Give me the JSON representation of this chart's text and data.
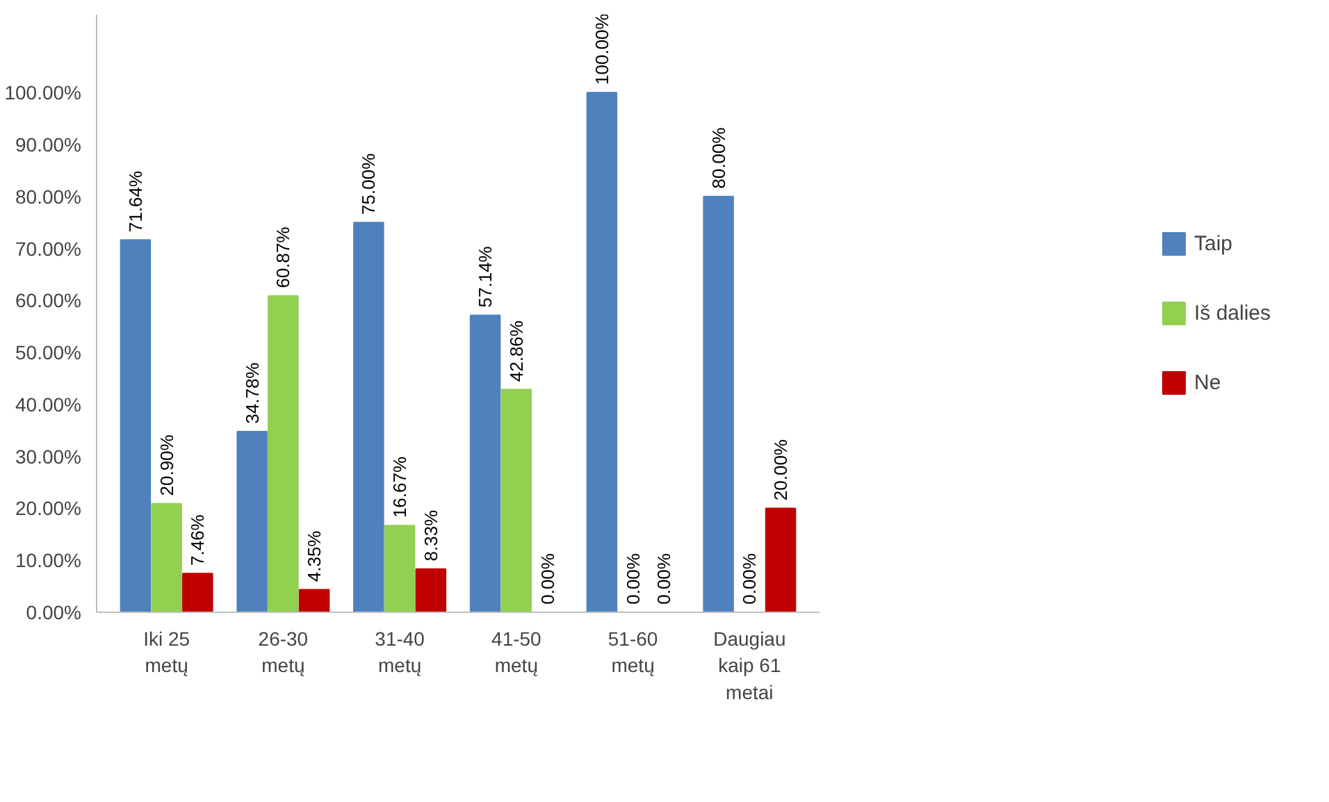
{
  "chart_data": {
    "type": "bar",
    "categories": [
      "Iki 25\nmetų",
      "26-30\nmetų",
      "31-40\nmetų",
      "41-50\nmetų",
      "51-60\nmetų",
      "Daugiau\nkaip 61\nmetai"
    ],
    "series": [
      {
        "name": "Taip",
        "color": "#4f81bd",
        "values": [
          71.64,
          34.78,
          75,
          57.14,
          100,
          80
        ],
        "value_labels": [
          "71.64%",
          "34.78%",
          "75.00%",
          "57.14%",
          "100.00%",
          "80.00%"
        ]
      },
      {
        "name": "Iš dalies",
        "color": "#92d050",
        "values": [
          20.9,
          60.87,
          16.67,
          42.86,
          0,
          0
        ],
        "value_labels": [
          "20.90%",
          "60.87%",
          "16.67%",
          "42.86%",
          "0.00%",
          "0.00%"
        ]
      },
      {
        "name": "Ne",
        "color": "#c00000",
        "values": [
          7.46,
          4.35,
          8.33,
          0,
          0,
          20
        ],
        "value_labels": [
          "7.46%",
          "4.35%",
          "8.33%",
          "0.00%",
          "0.00%",
          "20.00%"
        ]
      }
    ],
    "ylim": [
      0,
      115
    ],
    "yticks": [
      {
        "value": 0,
        "label": "0.00%"
      },
      {
        "value": 10,
        "label": "10.00%"
      },
      {
        "value": 20,
        "label": "20.00%"
      },
      {
        "value": 30,
        "label": "30.00%"
      },
      {
        "value": 40,
        "label": "40.00%"
      },
      {
        "value": 50,
        "label": "50.00%"
      },
      {
        "value": 60,
        "label": "60.00%"
      },
      {
        "value": 70,
        "label": "70.00%"
      },
      {
        "value": 80,
        "label": "80.00%"
      },
      {
        "value": 90,
        "label": "90.00%"
      },
      {
        "value": 100,
        "label": "100.00%"
      }
    ],
    "grid": false,
    "legend": "right"
  }
}
